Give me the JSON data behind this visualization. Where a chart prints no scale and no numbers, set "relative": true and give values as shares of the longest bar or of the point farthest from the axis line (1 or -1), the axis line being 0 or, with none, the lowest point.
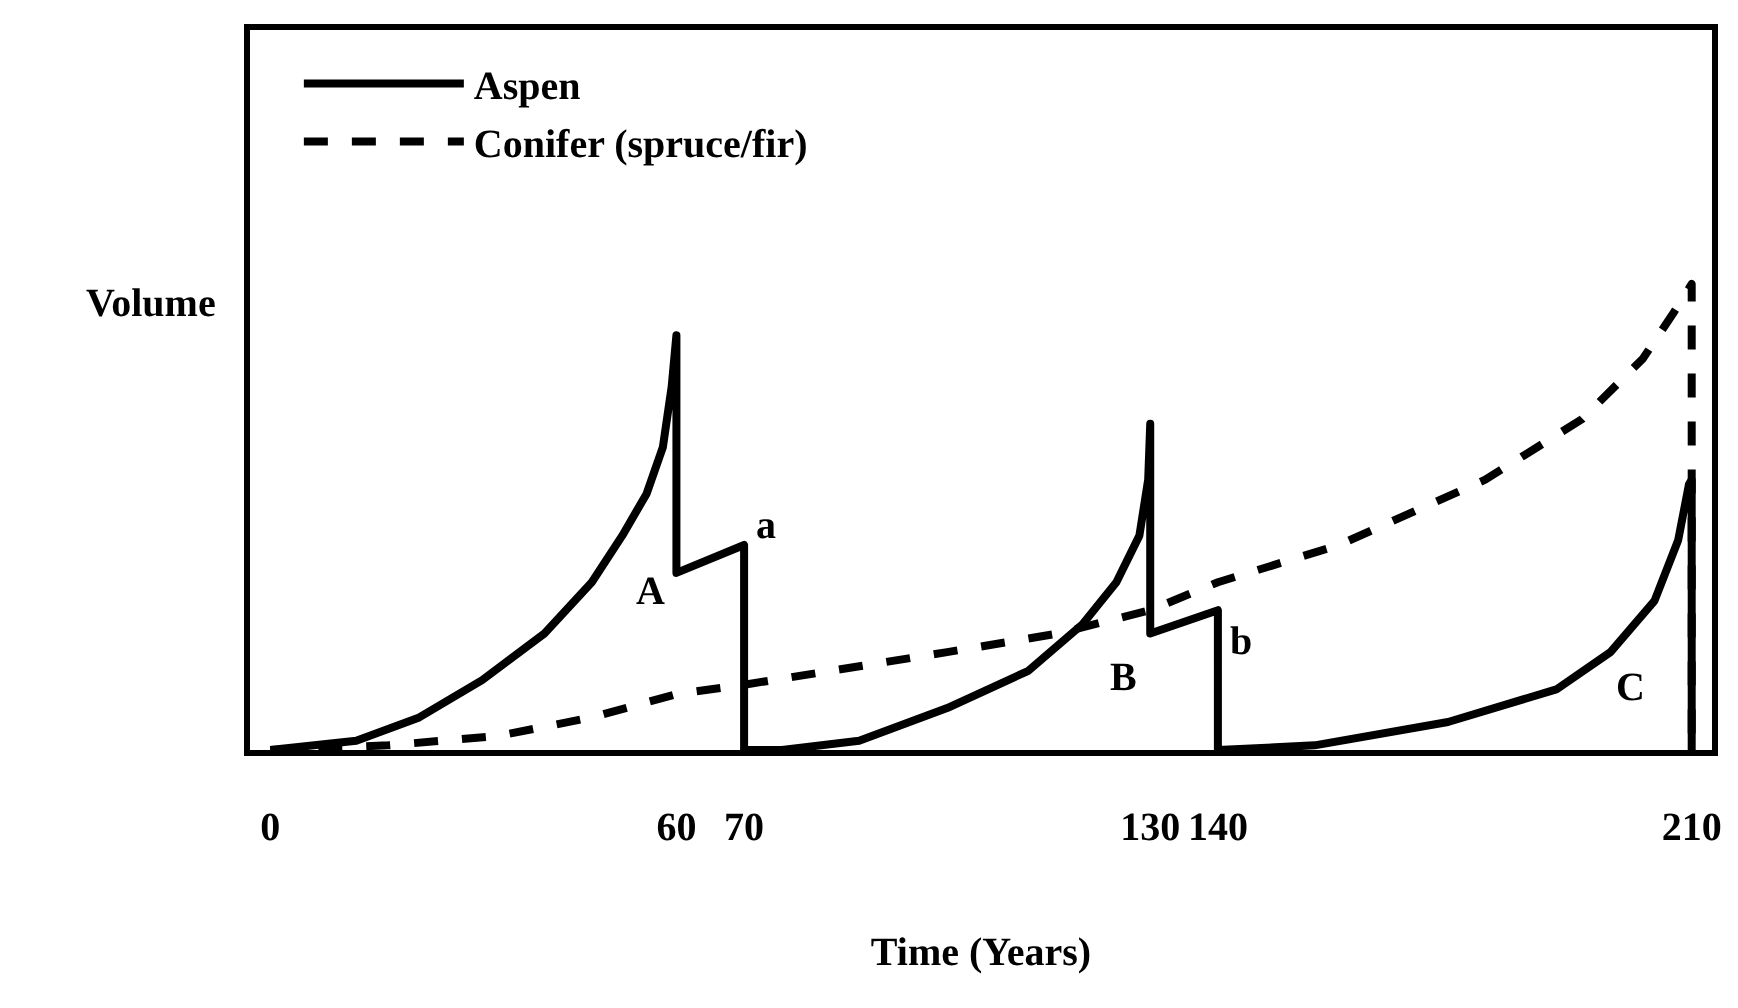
{
  "chart_data": {
    "type": "line",
    "relative": true,
    "xlabel": "Time (Years)",
    "ylabel": "Volume",
    "xlim": [
      -3,
      213
    ],
    "xticks": [
      0,
      60,
      70,
      130,
      140,
      210
    ],
    "legend": "top left",
    "marker": "none",
    "series": [
      {
        "name": "Aspen",
        "color": "#000000",
        "line_style": "solid",
        "x": [
          0,
          12.7,
          22,
          31.3,
          40.5,
          47.5,
          52,
          55.6,
          58,
          59.3,
          60,
          60,
          70,
          70,
          75.6,
          87,
          100,
          112,
          120,
          125,
          128.4,
          129.7,
          130,
          130,
          140,
          140,
          154.3,
          174,
          190,
          198,
          204.5,
          208,
          209.6,
          210,
          210
        ],
        "values": [
          0,
          0.02,
          0.07,
          0.15,
          0.25,
          0.36,
          0.46,
          0.55,
          0.65,
          0.78,
          0.89,
          0.38,
          0.44,
          0,
          0,
          0.02,
          0.09,
          0.17,
          0.27,
          0.36,
          0.46,
          0.58,
          0.7,
          0.25,
          0.3,
          0,
          0.01,
          0.06,
          0.13,
          0.21,
          0.32,
          0.45,
          0.57,
          0.58,
          0
        ]
      },
      {
        "name": "Conifer (spruce/fir)",
        "color": "#000000",
        "line_style": "dashed",
        "x": [
          0,
          17.4,
          33.6,
          47.5,
          60,
          70,
          100,
          116.4,
          130,
          140,
          157.9,
          179.5,
          193.8,
          202.8,
          207.4,
          210,
          210
        ],
        "values": [
          0,
          0.01,
          0.03,
          0.07,
          0.12,
          0.14,
          0.21,
          0.25,
          0.3,
          0.36,
          0.44,
          0.58,
          0.71,
          0.84,
          0.94,
          1,
          0
        ]
      }
    ],
    "annotations": [
      {
        "text": "A",
        "x": 60,
        "y": 0.38
      },
      {
        "text": "a",
        "x": 70,
        "y": 0.44
      },
      {
        "text": "B",
        "x": 130,
        "y": 0.25
      },
      {
        "text": "b",
        "x": 140,
        "y": 0.3
      },
      {
        "text": "C",
        "x": 198,
        "y": 0.21
      }
    ]
  }
}
